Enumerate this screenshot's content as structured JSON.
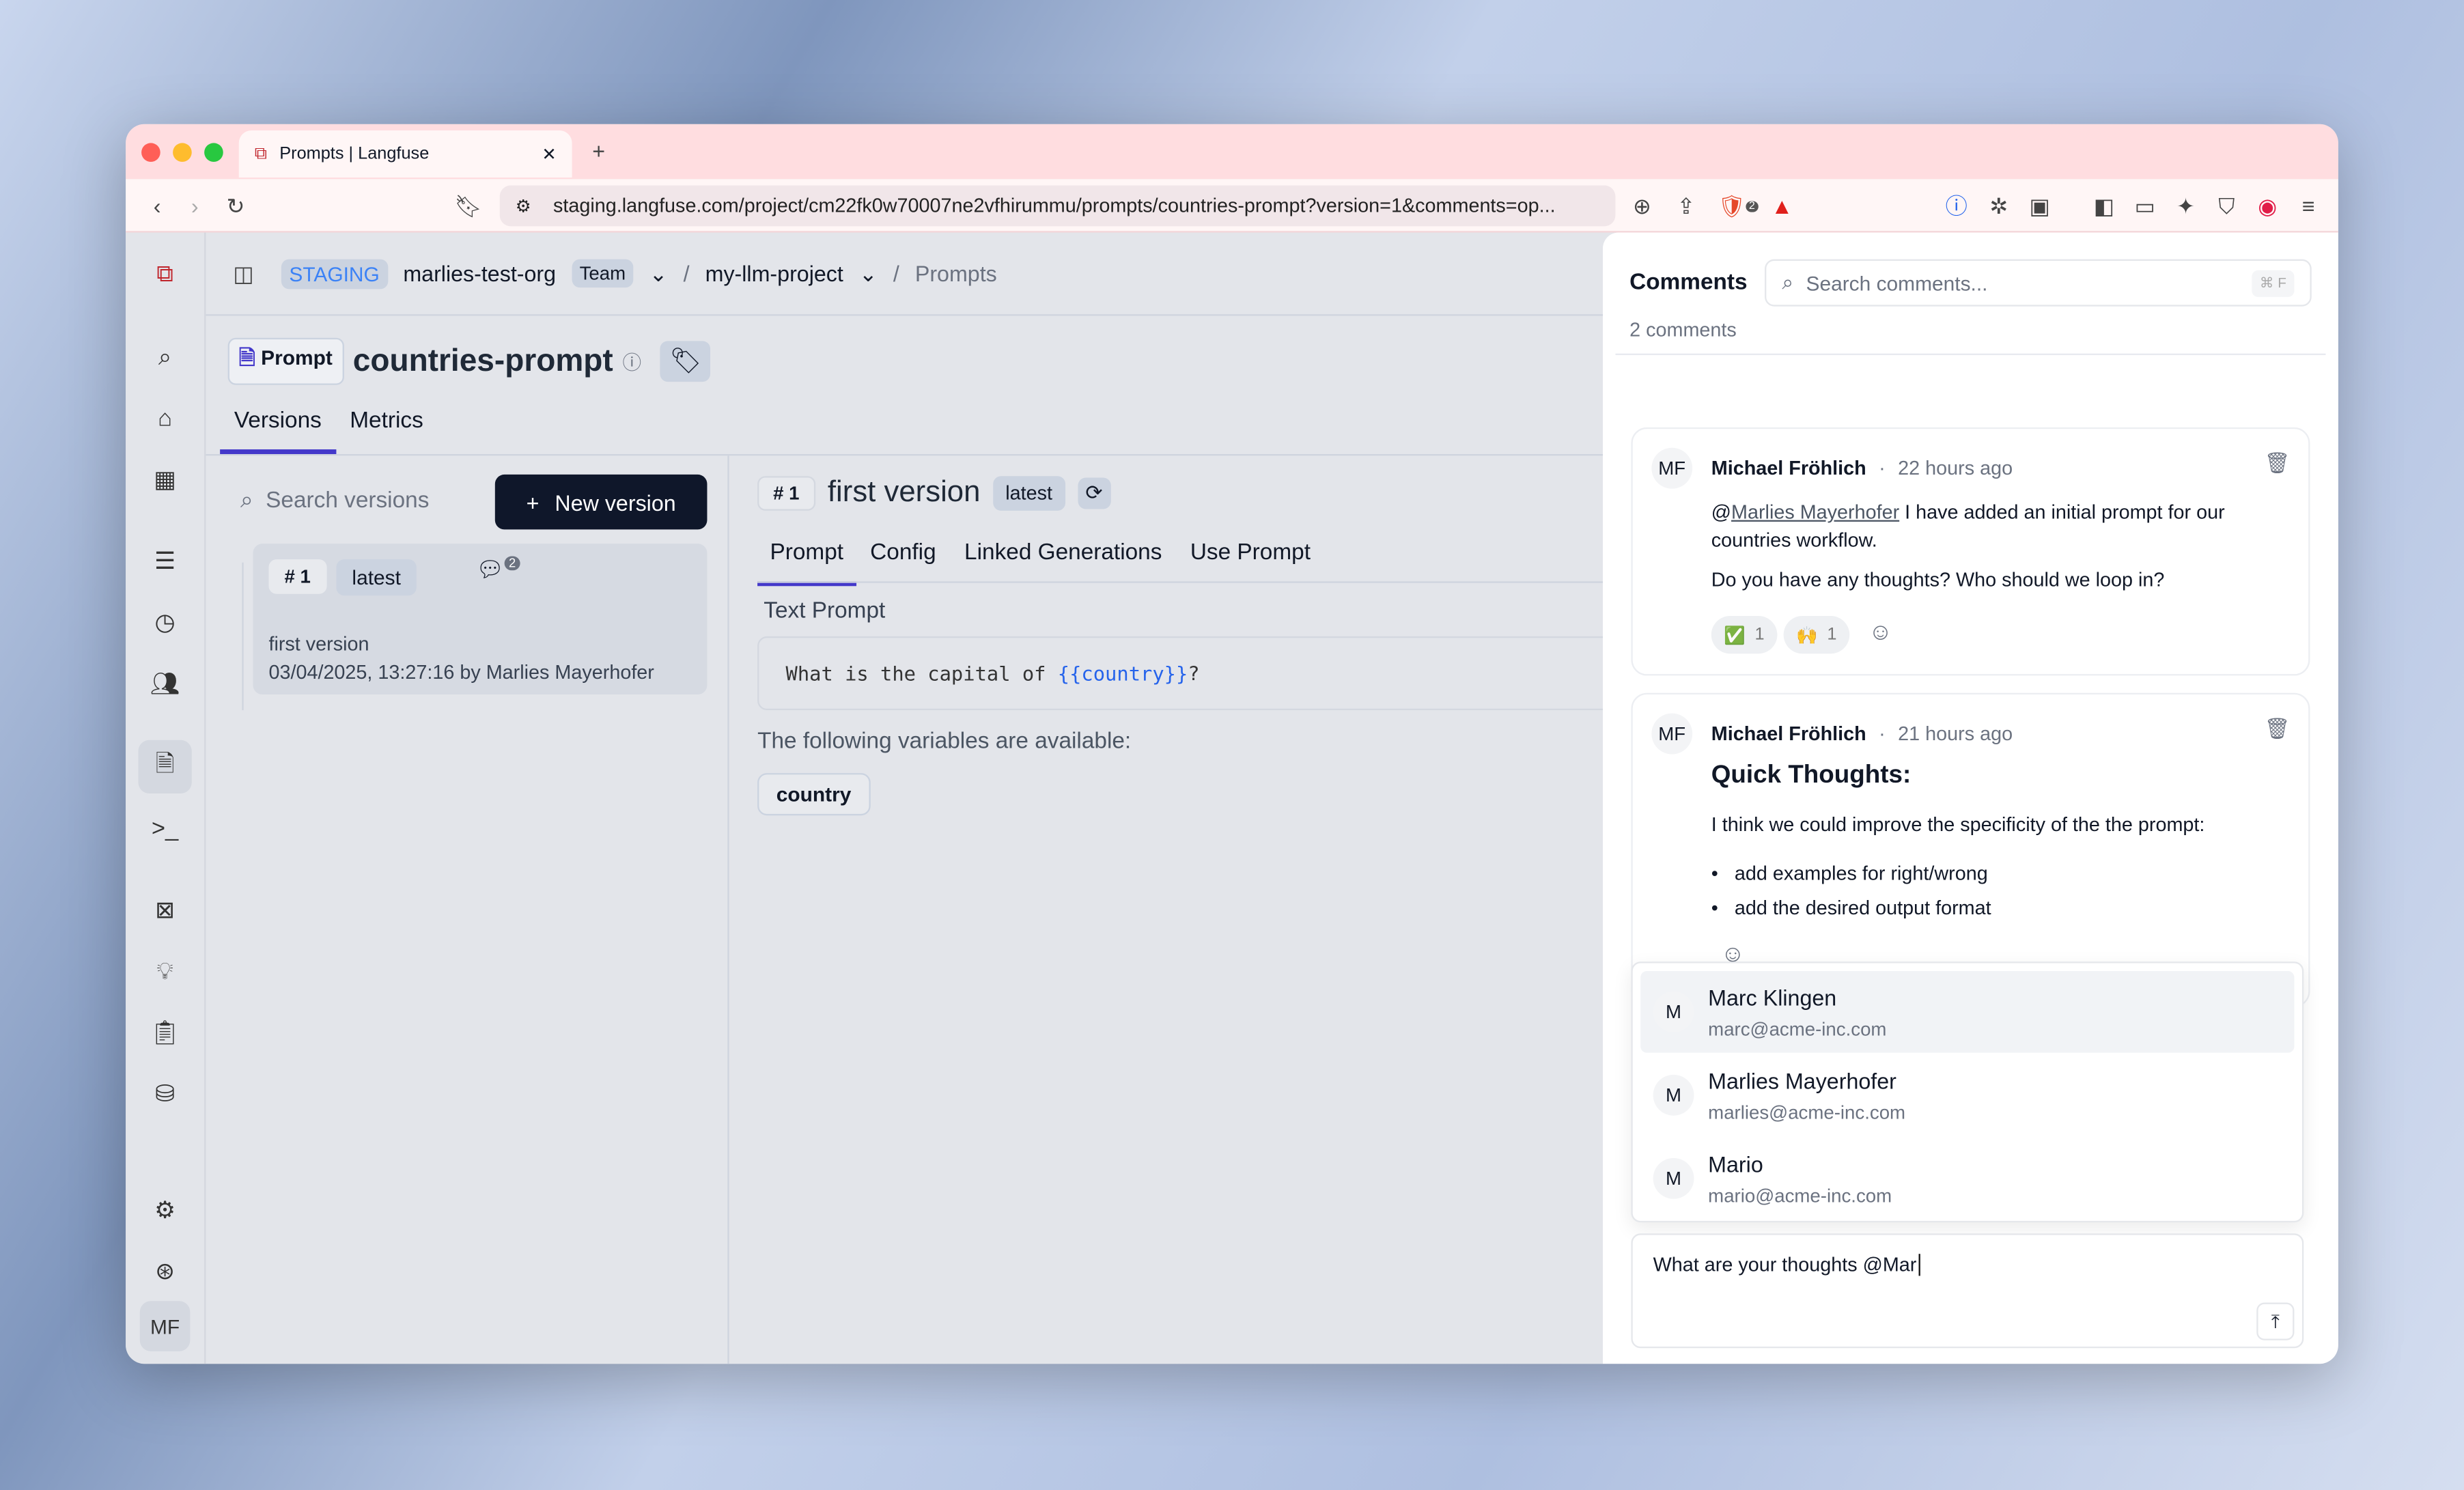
{
  "browser": {
    "tab_title": "Prompts | Langfuse",
    "url": "staging.langfuse.com/project/cm22fk0w70007ne2vfhirummu/prompts/countries-prompt?version=1&comments=op...",
    "extension_badge": "2"
  },
  "header": {
    "env": "STAGING",
    "org": "marlies-test-org",
    "org_badge": "Team",
    "project": "my-llm-project",
    "page": "Prompts"
  },
  "prompt": {
    "type_label": "Prompt",
    "name": "countries-prompt",
    "tabs": [
      "Versions",
      "Metrics"
    ]
  },
  "versions": {
    "search_placeholder": "Search versions",
    "new_version": "New version",
    "items": [
      {
        "number": "# 1",
        "label": "latest",
        "comment_count": "2",
        "title": "first version",
        "meta": "03/04/2025, 13:27:16 by Marlies Mayerhofer"
      }
    ]
  },
  "detail": {
    "number": "# 1",
    "title": "first version",
    "label": "latest",
    "tabs": [
      "Prompt",
      "Config",
      "Linked Generations",
      "Use Prompt"
    ],
    "section": "Text Prompt",
    "text_before": "What is the capital of ",
    "variable_text": "{{country}}",
    "text_after": "?",
    "vars_label": "The following variables are available:",
    "variables": [
      "country"
    ]
  },
  "sidebar": {
    "user_initials": "MF"
  },
  "comments": {
    "title": "Comments",
    "search_placeholder": "Search comments...",
    "shortcut": "⌘ F",
    "count": "2 comments",
    "items": [
      {
        "initials": "MF",
        "author": "Michael Fröhlich",
        "time": "22 hours ago",
        "mention": "Marlies Mayerhofer",
        "text1": " I have added an initial prompt for our countries workflow.",
        "text2": "Do you have any thoughts? Who should we loop in?",
        "reactions": [
          {
            "emoji": "✅",
            "count": "1"
          },
          {
            "emoji": "🙌",
            "count": "1"
          }
        ]
      },
      {
        "initials": "MF",
        "author": "Michael Fröhlich",
        "time": "21 hours ago",
        "heading": "Quick Thoughts:",
        "text1": "I think we could improve the specificity of the the prompt:",
        "bullets": [
          "add examples for right/wrong",
          "add the desired output format"
        ]
      }
    ],
    "mention_options": [
      {
        "initial": "M",
        "name": "Marc Klingen",
        "email": "marc@acme-inc.com"
      },
      {
        "initial": "M",
        "name": "Marlies Mayerhofer",
        "email": "marlies@acme-inc.com"
      },
      {
        "initial": "M",
        "name": "Mario",
        "email": "mario@acme-inc.com"
      }
    ],
    "input_value": "What are your thoughts @Mar"
  }
}
